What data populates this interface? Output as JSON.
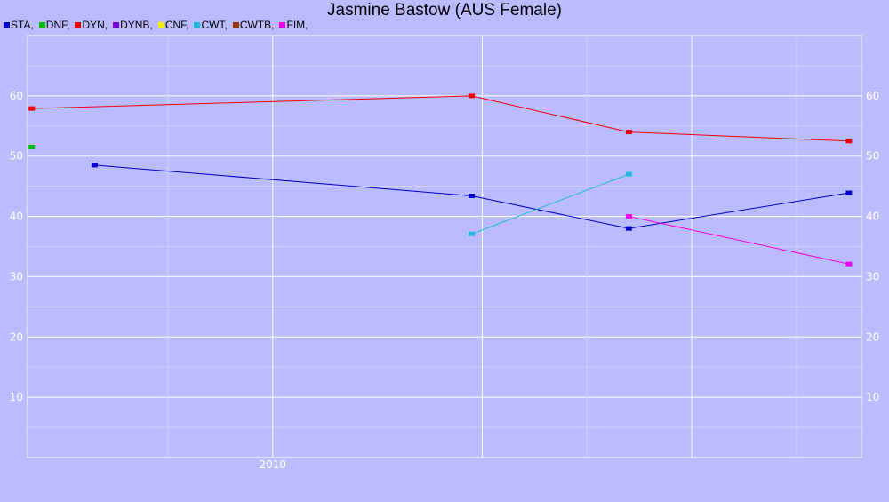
{
  "chart_data": {
    "type": "line",
    "title": "Jasmine Bastow (AUS Female)",
    "xlabel": "",
    "ylabel": "",
    "x_tick_labels": [
      "2010"
    ],
    "ylim": [
      0,
      70
    ],
    "y_ticks": [
      10,
      20,
      30,
      40,
      50,
      60
    ],
    "grid": true,
    "legend_placement": "top-left",
    "series": [
      {
        "name": "STA",
        "color": "#0000cc",
        "points": [
          {
            "x": 2009.15,
            "y": 48.5
          },
          {
            "x": 2010.95,
            "y": 43.4
          },
          {
            "x": 2011.7,
            "y": 38.0
          },
          {
            "x": 2012.75,
            "y": 43.9
          }
        ]
      },
      {
        "name": "DNF",
        "color": "#00bb00",
        "points": [
          {
            "x": 2008.85,
            "y": 51.5
          }
        ]
      },
      {
        "name": "DYN",
        "color": "#ee0000",
        "points": [
          {
            "x": 2008.85,
            "y": 57.9
          },
          {
            "x": 2010.95,
            "y": 60.0
          },
          {
            "x": 2011.7,
            "y": 54.0
          },
          {
            "x": 2012.75,
            "y": 52.5
          }
        ]
      },
      {
        "name": "DYNB",
        "color": "#7700dd",
        "points": []
      },
      {
        "name": "CNF",
        "color": "#eeee00",
        "points": []
      },
      {
        "name": "CWT",
        "color": "#22bbdd",
        "points": [
          {
            "x": 2010.95,
            "y": 37.1
          },
          {
            "x": 2011.7,
            "y": 47.0
          }
        ]
      },
      {
        "name": "CWTB",
        "color": "#993300",
        "points": []
      },
      {
        "name": "FIM",
        "color": "#ee00ee",
        "points": [
          {
            "x": 2011.7,
            "y": 40.0
          },
          {
            "x": 2012.75,
            "y": 32.1
          }
        ]
      }
    ]
  }
}
